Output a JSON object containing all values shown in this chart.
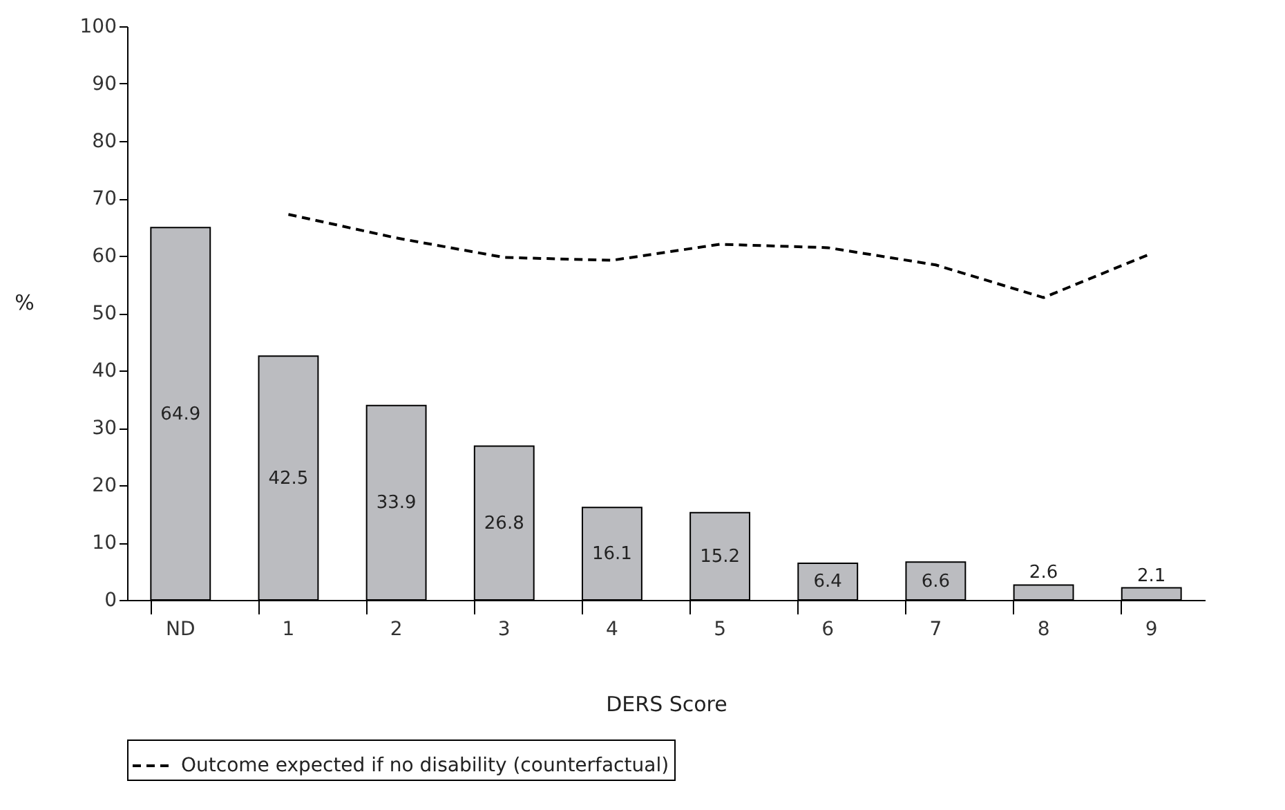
{
  "chart_data": {
    "type": "bar",
    "xlabel": "DERS Score",
    "ylabel": "%",
    "categories": [
      "ND",
      "1",
      "2",
      "3",
      "4",
      "5",
      "6",
      "7",
      "8",
      "9"
    ],
    "ylim": [
      0,
      100
    ],
    "yticks": [
      0,
      10,
      20,
      30,
      40,
      50,
      60,
      70,
      80,
      90,
      100
    ],
    "grid": false,
    "legend": "bottom",
    "series": [
      {
        "color": "#bbbcc0",
        "values": [
          64.9,
          42.5,
          33.9,
          26.8,
          16.1,
          15.2,
          6.4,
          6.6,
          2.6,
          2.1
        ],
        "value_labels": [
          "64.9",
          "42.5",
          "33.9",
          "26.8",
          "16.1",
          "15.2",
          "6.4",
          "6.6",
          "2.6",
          "2.1"
        ]
      },
      {
        "type": "line",
        "name": "Outcome expected if no disability (counterfactual)",
        "color": "#000000",
        "line_style": "dashed",
        "marker": "none",
        "values": [
          null,
          67.2,
          63.1,
          59.7,
          59.2,
          62.0,
          61.4,
          58.4,
          52.7,
          60.4
        ]
      }
    ]
  }
}
